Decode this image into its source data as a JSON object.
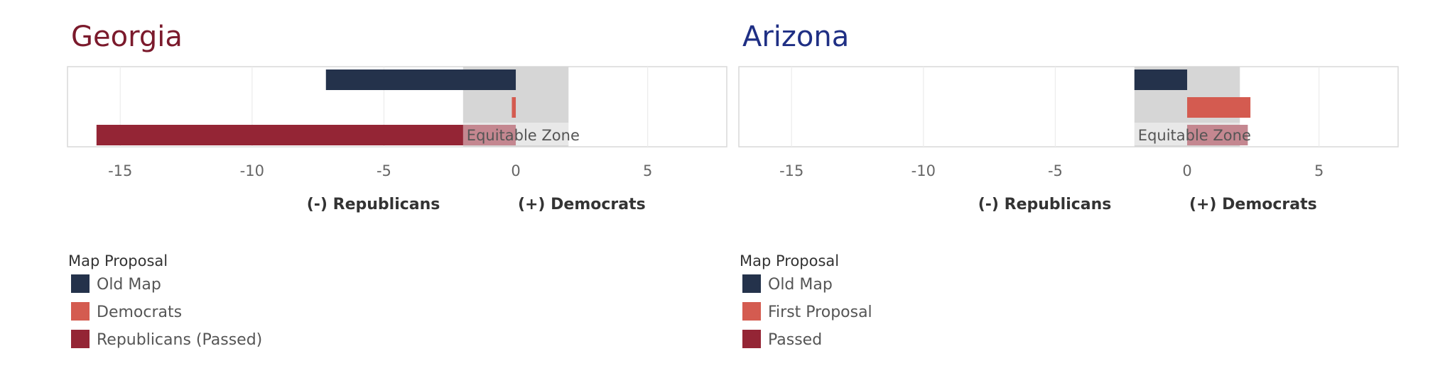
{
  "chart_data": [
    {
      "type": "bar",
      "orientation": "horizontal",
      "title": "Georgia",
      "title_color": "#7b1a2c",
      "xlim": [
        -17,
        8
      ],
      "x_ticks": [
        -15,
        -10,
        -5,
        0,
        5
      ],
      "x_tick_labels": [
        "-15",
        "-10",
        "-5",
        "0",
        "5"
      ],
      "grid": true,
      "xlabel_left": "(-) Republicans",
      "xlabel_right": "(+) Democrats",
      "equitable_zone": {
        "label": "Equitable Zone",
        "range": [
          -2,
          2
        ]
      },
      "legend_title": "Map Proposal",
      "series": [
        {
          "name": "Old Map",
          "value": -7.2,
          "color": "#24324b"
        },
        {
          "name": "Democrats",
          "value": -0.15,
          "color": "#d45b50"
        },
        {
          "name": "Republicans (Passed)",
          "value": -15.9,
          "color": "#942535"
        }
      ]
    },
    {
      "type": "bar",
      "orientation": "horizontal",
      "title": "Arizona",
      "title_color": "#1f2f84",
      "xlim": [
        -17,
        8
      ],
      "x_ticks": [
        -15,
        -10,
        -5,
        0,
        5
      ],
      "x_tick_labels": [
        "-15",
        "-10",
        "-5",
        "0",
        "5"
      ],
      "grid": true,
      "xlabel_left": "(-) Republicans",
      "xlabel_right": "(+) Democrats",
      "equitable_zone": {
        "label": "Equitable Zone",
        "range": [
          -2,
          2
        ]
      },
      "legend_title": "Map Proposal",
      "series": [
        {
          "name": "Old Map",
          "value": -2.0,
          "color": "#24324b"
        },
        {
          "name": "First Proposal",
          "value": 2.4,
          "color": "#d45b50"
        },
        {
          "name": "Passed",
          "value": 2.3,
          "color": "#942535"
        }
      ]
    }
  ]
}
